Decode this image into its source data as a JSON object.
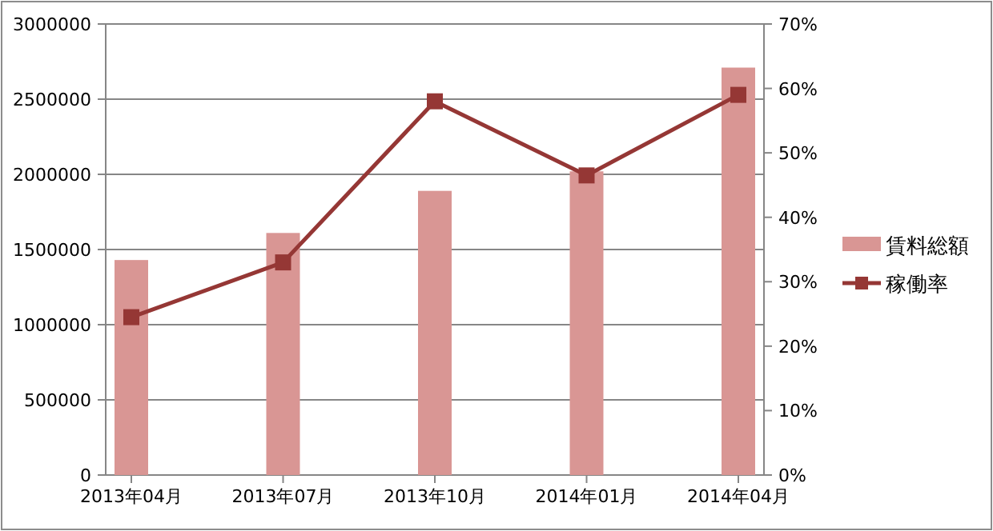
{
  "chart_data": {
    "type": "bar",
    "categories": [
      "2013年04月",
      "2013年07月",
      "2013年10月",
      "2014年01月",
      "2014年04月"
    ],
    "series": [
      {
        "name": "賃料総額",
        "color": "#d99694",
        "values": [
          1430000,
          1610000,
          1890000,
          2020000,
          2710000
        ]
      },
      {
        "name": "稼働率",
        "type": "line",
        "axis": "y2",
        "color": "#953735",
        "values": [
          24.5,
          33,
          58,
          46.5,
          59
        ]
      }
    ],
    "ylim": [
      0,
      3000000
    ],
    "yticks": [
      0,
      500000,
      1000000,
      1500000,
      2000000,
      2500000,
      3000000
    ],
    "y2lim": [
      0,
      70
    ],
    "y2ticks": [
      {
        "value": 0,
        "label": "0%"
      },
      {
        "value": 10,
        "label": "10%"
      },
      {
        "value": 20,
        "label": "20%"
      },
      {
        "value": 30,
        "label": "30%"
      },
      {
        "value": 40,
        "label": "40%"
      },
      {
        "value": 50,
        "label": "50%"
      },
      {
        "value": 60,
        "label": "60%"
      },
      {
        "value": 70,
        "label": "70%"
      }
    ],
    "grid": "y",
    "legend": "right",
    "marker": "square",
    "line_style": "solid"
  }
}
